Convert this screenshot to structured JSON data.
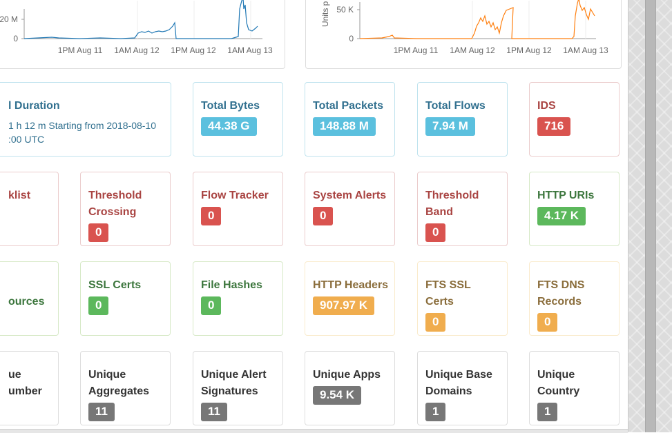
{
  "charts": [
    {
      "name": "bytes-over-time",
      "y_ticks": [
        "20 M",
        "0"
      ],
      "x_ticks": [
        "1PM Aug 11",
        "1AM Aug 12",
        "1PM Aug 12",
        "1AM Aug 13"
      ],
      "series_color": "#1f77b4"
    },
    {
      "name": "units-over-time",
      "y_axis_label": "Units p",
      "y_ticks": [
        "50 K",
        "0"
      ],
      "x_ticks": [
        "1PM Aug 11",
        "1AM Aug 12",
        "1PM Aug 12",
        "1AM Aug 13"
      ],
      "series_color": "#ff7f0e"
    }
  ],
  "cards": [
    {
      "id": "duration",
      "style": "primary",
      "title_lines": [
        "l Duration"
      ],
      "description_lines": [
        "1 h 12 m Starting from 2018-08-10",
        ":00 UTC"
      ]
    },
    {
      "id": "total-bytes",
      "style": "primary",
      "title_lines": [
        "Total Bytes"
      ],
      "value": "44.38 G"
    },
    {
      "id": "total-packets",
      "style": "primary",
      "title_lines": [
        "Total Packets"
      ],
      "value": "148.88 M"
    },
    {
      "id": "total-flows",
      "style": "primary",
      "title_lines": [
        "Total Flows"
      ],
      "value": "7.94 M"
    },
    {
      "id": "ids",
      "style": "danger",
      "title_lines": [
        "IDS"
      ],
      "value": "716"
    },
    {
      "id": "blacklist",
      "style": "danger",
      "title_lines": [
        "klist"
      ]
    },
    {
      "id": "threshold-crossing",
      "style": "danger",
      "title_lines": [
        "Threshold",
        "Crossing"
      ],
      "value": "0"
    },
    {
      "id": "flow-tracker",
      "style": "danger",
      "title_lines": [
        "Flow Tracker"
      ],
      "value": "0"
    },
    {
      "id": "system-alerts",
      "style": "danger",
      "title_lines": [
        "System Alerts"
      ],
      "value": "0"
    },
    {
      "id": "threshold-band",
      "style": "danger",
      "title_lines": [
        "Threshold",
        "Band"
      ],
      "value": "0"
    },
    {
      "id": "http-uris",
      "style": "success",
      "title_lines": [
        "HTTP URIs"
      ],
      "value": "4.17 K"
    },
    {
      "id": "sources",
      "style": "success",
      "title_lines": [
        "",
        "ources"
      ]
    },
    {
      "id": "ssl-certs",
      "style": "success",
      "title_lines": [
        "SSL Certs"
      ],
      "value": "0"
    },
    {
      "id": "file-hashes",
      "style": "success",
      "title_lines": [
        "File Hashes"
      ],
      "value": "0"
    },
    {
      "id": "http-headers",
      "style": "warning",
      "title_lines": [
        "HTTP Headers"
      ],
      "value": "907.97 K"
    },
    {
      "id": "fts-ssl-certs",
      "style": "warning",
      "title_lines": [
        "FTS SSL",
        "Certs"
      ],
      "value": "0"
    },
    {
      "id": "fts-dns-records",
      "style": "warning",
      "title_lines": [
        "FTS DNS",
        "Records"
      ],
      "value": "0"
    },
    {
      "id": "unique-number",
      "style": "default",
      "title_lines": [
        "ue",
        "umber"
      ]
    },
    {
      "id": "unique-aggregates",
      "style": "default",
      "title_lines": [
        "Unique",
        "Aggregates"
      ],
      "value": "11"
    },
    {
      "id": "unique-alert-signatures",
      "style": "default",
      "title_lines": [
        "Unique Alert",
        "Signatures"
      ],
      "value": "11"
    },
    {
      "id": "unique-apps",
      "style": "default",
      "title_lines": [
        "Unique Apps"
      ],
      "value": "9.54 K"
    },
    {
      "id": "unique-base-domains",
      "style": "default",
      "title_lines": [
        "Unique Base",
        "Domains"
      ],
      "value": "1"
    },
    {
      "id": "unique-country",
      "style": "default",
      "title_lines": [
        "Unique",
        "Country"
      ],
      "value": "1"
    }
  ]
}
